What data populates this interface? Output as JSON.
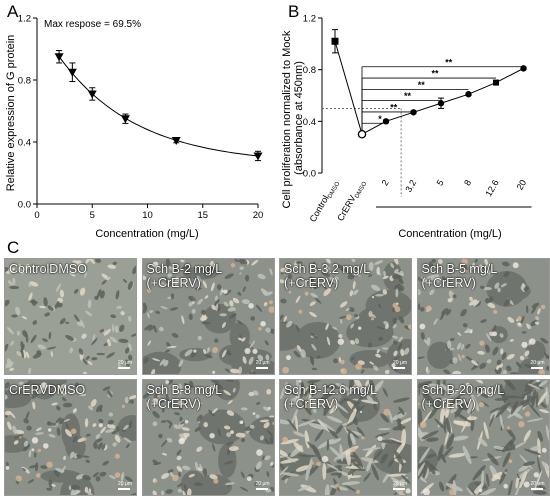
{
  "panel_labels": [
    "A",
    "B",
    "C"
  ],
  "chart_data": [
    {
      "panel": "A",
      "type": "scatter",
      "annotation": "Max respose = 69.5%",
      "xlabel": "Concentration (mg/L)",
      "ylabel": "Relative expression of G protein",
      "xlim": [
        0,
        20
      ],
      "ylim": [
        0,
        1.2
      ],
      "x_ticks": [
        "0",
        "5",
        "10",
        "15",
        "20"
      ],
      "y_ticks": [
        "0.0",
        "0.4",
        "0.8",
        "1.2"
      ],
      "marker": "triangle-down",
      "points": [
        {
          "x": 2,
          "y": 0.95,
          "err": 0.04
        },
        {
          "x": 3.2,
          "y": 0.85,
          "err": 0.06
        },
        {
          "x": 5,
          "y": 0.71,
          "err": 0.04
        },
        {
          "x": 8,
          "y": 0.55,
          "err": 0.03
        },
        {
          "x": 12.6,
          "y": 0.41,
          "err": 0.015
        },
        {
          "x": 20,
          "y": 0.31,
          "err": 0.03
        }
      ],
      "fit_curve": true
    },
    {
      "panel": "B",
      "type": "line",
      "ylabel": "Cell proliferation normalized to Mock\n(absorbance at 450nm)",
      "xlabel": "Concentration (mg/L)",
      "ylim": [
        0,
        1.2
      ],
      "y_ticks": [
        "0.0",
        "0.4",
        "0.8",
        "1.2"
      ],
      "control_labels": [
        {
          "base": "Control",
          "sub": "DMSO"
        },
        {
          "base": "CrERV",
          "sub": "DMSO"
        }
      ],
      "categories": [
        "2",
        "3.2",
        "5",
        "8",
        "12.6",
        "20"
      ],
      "control_values": [
        {
          "name": "Control DMSO",
          "y": 1.02,
          "err": 0.09,
          "marker": "square"
        },
        {
          "name": "CrERV DMSO",
          "y": 0.3,
          "err": 0.02,
          "marker": "circle-open"
        }
      ],
      "values": [
        0.4,
        0.47,
        0.54,
        0.61,
        0.7,
        0.81
      ],
      "errors": [
        0.01,
        0.01,
        0.04,
        0.01,
        0.01,
        0.01
      ],
      "markers": [
        "circle",
        "circle",
        "circle",
        "circle",
        "square",
        "circle"
      ],
      "significance": [
        "*",
        "**",
        "**",
        "**",
        "**",
        "**"
      ],
      "reference_line_y": 0.5
    }
  ],
  "micrographs": [
    {
      "label": "ControlDMSO",
      "seed": 11,
      "density": "confluent"
    },
    {
      "label": "Sch B-2 mg/L\n(+CrERV)",
      "seed": 23,
      "density": "holes"
    },
    {
      "label": "Sch B-3.2 mg/L\n(+CrERV)",
      "seed": 37,
      "density": "holes"
    },
    {
      "label": "Sch B-5 mg/L\n(+CrERV)",
      "seed": 41,
      "density": "partial"
    },
    {
      "label": "CrERVDMSO",
      "seed": 53,
      "density": "holes"
    },
    {
      "label": "Sch B-8 mg/L\n(+CrERV)",
      "seed": 61,
      "density": "partial"
    },
    {
      "label": "Sch B-12.6 mg/L\n(+CrERV)",
      "seed": 73,
      "density": "fibrous"
    },
    {
      "label": "Sch B-20 mg/L\n(+CrERV)",
      "seed": 89,
      "density": "fibrous"
    }
  ],
  "scale_bar_label": "20 μm"
}
